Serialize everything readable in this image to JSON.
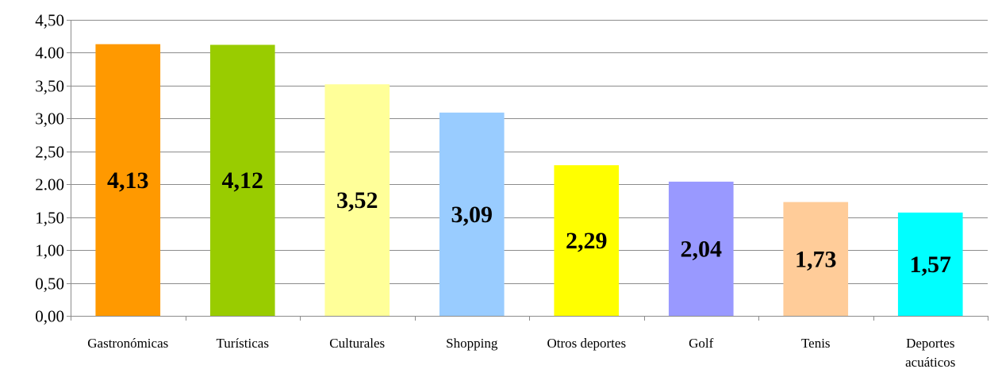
{
  "chart_data": {
    "type": "bar",
    "categories": [
      "Gastronómicas",
      "Turísticas",
      "Culturales",
      "Shopping",
      "Otros deportes",
      "Golf",
      "Tenis",
      "Deportes acuáticos"
    ],
    "values": [
      4.13,
      4.12,
      3.52,
      3.09,
      2.29,
      2.04,
      1.73,
      1.57
    ],
    "data_labels": [
      "4,13",
      "4,12",
      "3,52",
      "3,09",
      "2,29",
      "2,04",
      "1,73",
      "1,57"
    ],
    "colors": [
      "#ff9900",
      "#99cc00",
      "#ffff99",
      "#99ccff",
      "#ffff00",
      "#9999ff",
      "#ffcc99",
      "#00ffff"
    ],
    "ylim": [
      0,
      4.5
    ],
    "yticks": [
      0,
      0.5,
      1.0,
      1.5,
      2.0,
      2.5,
      3.0,
      3.5,
      4.0,
      4.5
    ],
    "ytick_labels": [
      "0,00",
      "0,50",
      "1,00",
      "1,50",
      "2.00",
      "2,50",
      "3,00",
      "3,50",
      "4.00",
      "4,50"
    ],
    "grid": true,
    "legend": "none",
    "title": "",
    "xlabel": "",
    "ylabel": ""
  }
}
